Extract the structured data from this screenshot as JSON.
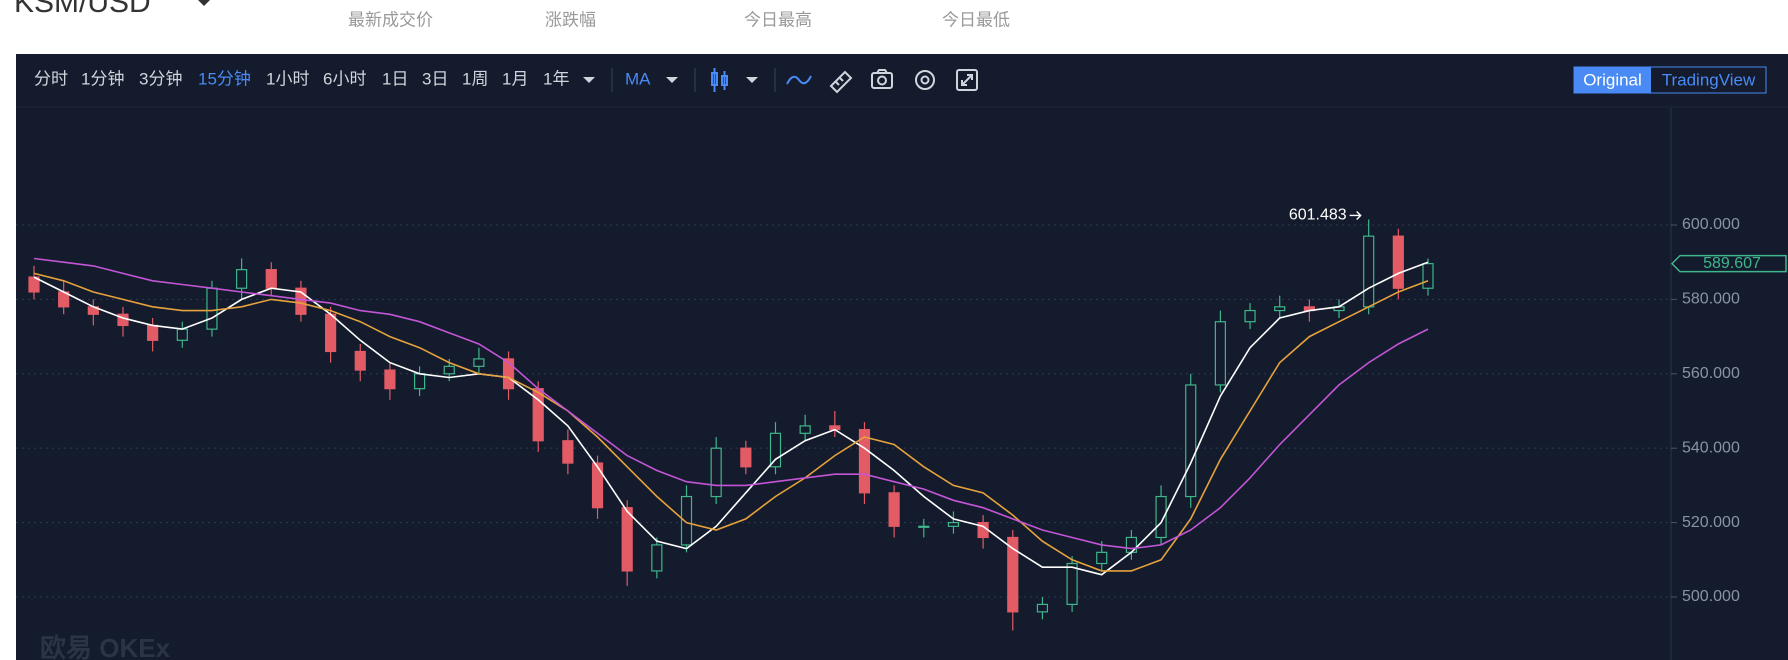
{
  "header": {
    "pair": "KSM/USD",
    "stats": [
      "最新成交价",
      "涨跌幅",
      "今日最高",
      "今日最低"
    ]
  },
  "toolbar": {
    "intervals": [
      "分时",
      "1分钟",
      "3分钟",
      "15分钟",
      "1小时",
      "6小时",
      "1日",
      "3日",
      "1周",
      "1月",
      "1年"
    ],
    "active_interval": 3,
    "indicator": "MA",
    "views": [
      "Original",
      "TradingView"
    ],
    "active_view": 0
  },
  "chart_data": {
    "type": "candlestick",
    "watermark": "欧易 OKEx",
    "up_color": "#3fb68b",
    "down_color": "#e25b65",
    "candles": {
      "open": [
        586,
        582,
        578,
        576,
        573,
        569,
        572,
        583,
        588,
        583,
        576,
        566,
        561,
        556,
        560,
        562,
        564,
        556,
        542,
        536,
        524,
        507,
        514,
        527,
        540,
        535,
        544,
        546,
        545,
        528,
        519,
        519,
        520,
        516,
        496,
        498,
        509,
        512,
        516,
        527,
        557,
        574,
        577,
        578,
        577,
        578,
        597,
        583
      ],
      "high": [
        589,
        585,
        580,
        578,
        575,
        574,
        585,
        591,
        590,
        585,
        578,
        568,
        563,
        562,
        564,
        567,
        566,
        558,
        545,
        538,
        526,
        516,
        530,
        543,
        542,
        547,
        549,
        550,
        547,
        530,
        521,
        523,
        522,
        518,
        500,
        511,
        515,
        518,
        530,
        560,
        577,
        579,
        581,
        580,
        580,
        601.483,
        599,
        591
      ],
      "low": [
        580,
        576,
        573,
        570,
        566,
        567,
        570,
        580,
        581,
        574,
        563,
        558,
        553,
        554,
        558,
        560,
        553,
        539,
        533,
        521,
        503,
        505,
        512,
        525,
        533,
        533,
        542,
        543,
        525,
        516,
        516,
        517,
        513,
        491,
        494,
        496,
        507,
        510,
        514,
        524,
        555,
        572,
        575,
        574,
        575,
        576,
        580,
        581
      ],
      "close": [
        582,
        578,
        576,
        573,
        569,
        572,
        583,
        588,
        583,
        576,
        566,
        561,
        556,
        560,
        562,
        564,
        556,
        542,
        536,
        524,
        507,
        514,
        527,
        540,
        535,
        544,
        546,
        545,
        528,
        519,
        519,
        520,
        516,
        496,
        498,
        509,
        512,
        516,
        527,
        557,
        574,
        577,
        578,
        577,
        578,
        597,
        583,
        589.607
      ]
    },
    "lines": [
      {
        "color": "#ffffff",
        "values": [
          586,
          582,
          578,
          575,
          573,
          572,
          575,
          580,
          583,
          582,
          576,
          569,
          563,
          560,
          559,
          560,
          559,
          553,
          546,
          535,
          523,
          515,
          513,
          519,
          528,
          537,
          542,
          545,
          540,
          534,
          527,
          521,
          519,
          513,
          508,
          508,
          506,
          512,
          520,
          536,
          554,
          567,
          575,
          577,
          578,
          583,
          587,
          590
        ]
      },
      {
        "color": "#e6a23c",
        "values": [
          587,
          585,
          582,
          580,
          578,
          577,
          577,
          578,
          580,
          579,
          577,
          574,
          570,
          567,
          563,
          560,
          559,
          555,
          550,
          543,
          535,
          527,
          520,
          518,
          521,
          527,
          532,
          538,
          543,
          541,
          535,
          530,
          528,
          522,
          515,
          510,
          507,
          507,
          510,
          521,
          537,
          550,
          563,
          570,
          574,
          578,
          582,
          585
        ]
      },
      {
        "color": "#c355d6",
        "values": [
          591,
          590,
          589,
          587,
          585,
          584,
          583,
          582,
          581,
          580,
          579,
          577,
          576,
          574,
          571,
          568,
          563,
          556,
          550,
          544,
          538,
          534,
          531,
          530,
          530,
          531,
          532,
          533,
          533,
          531,
          529,
          526,
          524,
          521,
          518,
          516,
          514,
          513,
          514,
          518,
          524,
          532,
          541,
          549,
          557,
          563,
          568,
          572
        ]
      }
    ],
    "ylim": [
      483.06,
      631.45
    ],
    "yticks": [
      {
        "value": 500,
        "label": "500.000"
      },
      {
        "value": 520,
        "label": "520.000"
      },
      {
        "value": 540,
        "label": "540.000"
      },
      {
        "value": 560,
        "label": "560.000"
      },
      {
        "value": 580,
        "label": "580.000"
      },
      {
        "value": 600,
        "label": "600.000"
      }
    ],
    "grid": true
  }
}
